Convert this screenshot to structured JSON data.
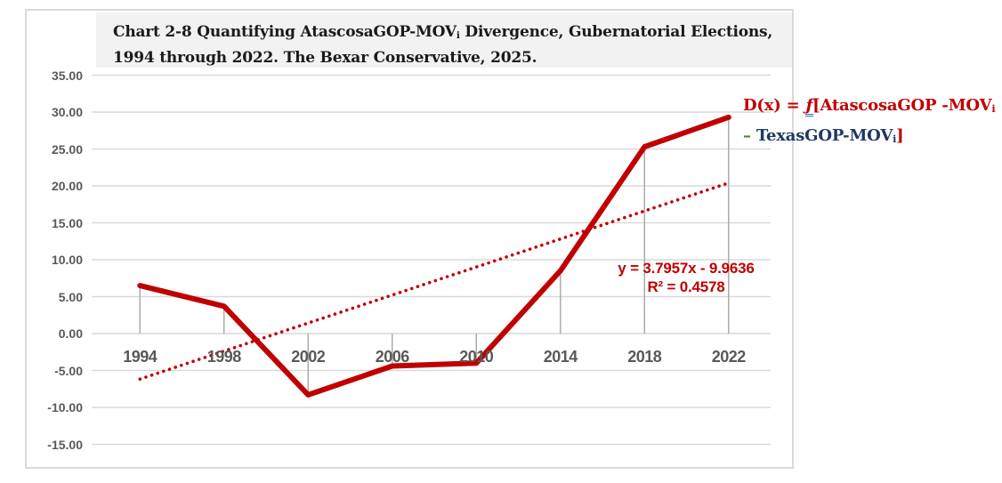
{
  "colors": {
    "red": "#C00000",
    "navy": "#1F3864",
    "green": "#538135",
    "axis_text": "#595959",
    "grid": "#D9D9D9",
    "drop_line": "#A6A6A6",
    "title_bg": "#F2F2F2",
    "title_text": "#1A1A1A"
  },
  "title": {
    "lines": [
      [
        {
          "t": "Chart 2-8 Quantifying AtascosaGOP-MOV"
        },
        {
          "t": "i",
          "sub": true
        },
        {
          "t": " Divergence, Gubernatorial Elections,"
        }
      ],
      [
        {
          "t": "1994 through 2022. The Bexar Conservative, 2025."
        }
      ]
    ]
  },
  "annotation": {
    "lines": [
      [
        {
          "t": "D(x) = ",
          "color": "red"
        },
        {
          "t": "ƒ",
          "color": "red",
          "italic": true,
          "underline": true
        },
        {
          "t": "[AtascosaGOP -MOV",
          "color": "red"
        },
        {
          "t": "i",
          "color": "red",
          "sub": true
        }
      ],
      [
        {
          "t": "– ",
          "color": "green"
        },
        {
          "t": "TexasGOP-MOV",
          "color": "navy"
        },
        {
          "t": "i",
          "color": "navy",
          "sub": true
        },
        {
          "t": "]",
          "color": "red"
        }
      ]
    ]
  },
  "chart_data": {
    "type": "line",
    "categories": [
      "1994",
      "1998",
      "2002",
      "2006",
      "2010",
      "2014",
      "2018",
      "2022"
    ],
    "series": [
      {
        "name": "AtascosaGOP-MOVi divergence",
        "color": "#C00000",
        "values": [
          6.5,
          3.7,
          -8.3,
          -4.4,
          -4.0,
          8.5,
          25.3,
          29.3
        ]
      }
    ],
    "trendline": {
      "slope": 3.7957,
      "intercept": -9.9636,
      "equation": "y = 3.7957x - 9.9636",
      "r2": "R² = 0.4578",
      "color": "#C00000",
      "style": "dotted"
    },
    "y_axis": {
      "min": -15,
      "max": 35,
      "step": 5,
      "tick_labels": [
        "35.00",
        "30.00",
        "25.00",
        "20.00",
        "15.00",
        "10.00",
        "5.00",
        "0.00",
        "-5.00",
        "-10.00",
        "-15.00"
      ]
    },
    "grid": true,
    "drop_lines": true,
    "legend": "none"
  }
}
